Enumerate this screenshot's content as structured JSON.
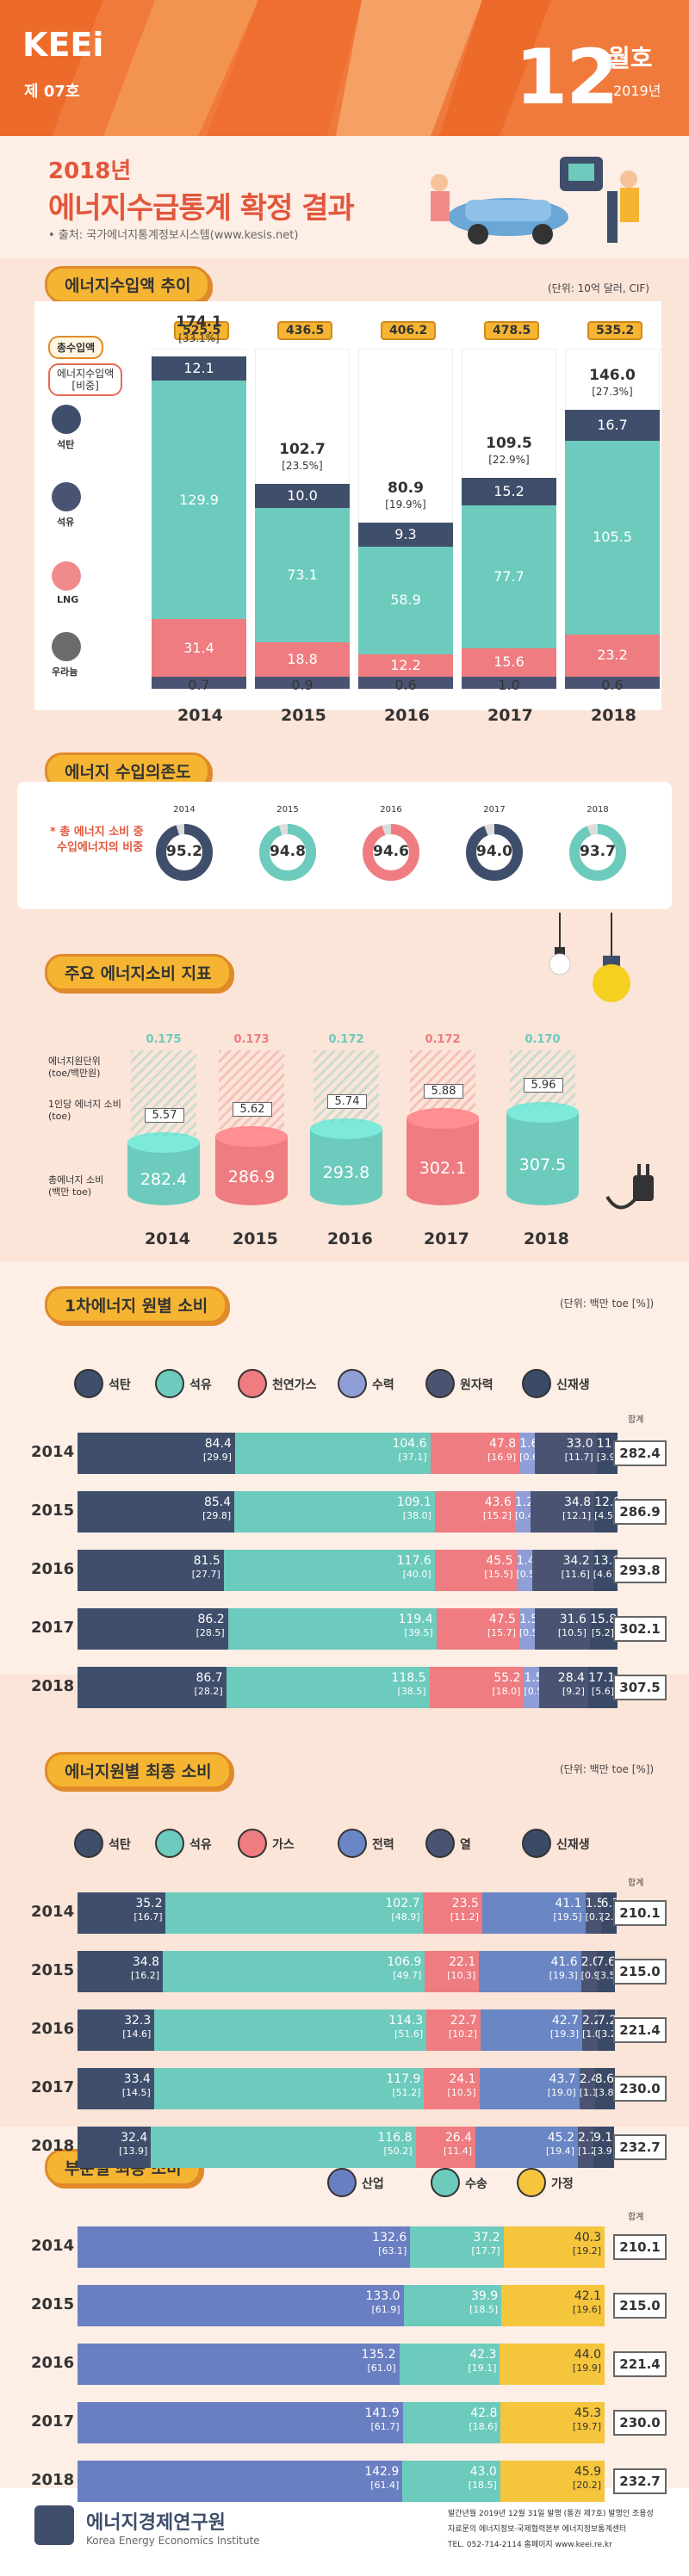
{
  "header": {
    "logo": "KEEi",
    "issue": "제 07호",
    "month_num": "12",
    "month_label": "월호",
    "year": "2019년"
  },
  "title": {
    "sub": "2018년",
    "main": "에너지수급통계 확정 결과",
    "source": "• 출처: 국가에너지통계정보시스템(www.kesis.net)"
  },
  "colors": {
    "coal": "#3f4e6b",
    "oil": "#6ccbbd",
    "lng": "#ee7c80",
    "nuclear": "#4a5472",
    "hydro": "#8f9ed6",
    "accent": "#f07a3c"
  },
  "sections": {
    "import_trend": "에너지수입액 추이",
    "dependency": "에너지 수입의존도",
    "indicators": "주요 에너지소비 지표",
    "primary": "1차에너지 원별 소비",
    "final": "에너지원별 최종 소비",
    "sector": "부문별 최종 소비"
  },
  "chart_data": [
    {
      "type": "bar",
      "title": "에너지수입액 추이",
      "unit": "(단위: 10억 달러, CIF)",
      "categories": [
        "2014",
        "2015",
        "2016",
        "2017",
        "2018"
      ],
      "series_labels": {
        "total": "총수입액",
        "share": "에너지수입액\n[비중]",
        "coal": "석탄",
        "oil": "석유",
        "lng": "LNG",
        "uranium": "우라늄"
      },
      "total": [
        525.5,
        436.5,
        406.2,
        478.5,
        535.2
      ],
      "energy": [
        174.1,
        102.7,
        80.9,
        109.5,
        146.0
      ],
      "energy_share": [
        "[33.1%]",
        "[23.5%]",
        "[19.9%]",
        "[22.9%]",
        "[27.3%]"
      ],
      "series": [
        {
          "name": "석탄",
          "values": [
            12.1,
            10.0,
            9.3,
            15.2,
            16.7
          ]
        },
        {
          "name": "석유",
          "values": [
            129.9,
            73.1,
            58.9,
            77.7,
            105.5
          ]
        },
        {
          "name": "LNG",
          "values": [
            31.4,
            18.8,
            12.2,
            15.6,
            23.2
          ]
        },
        {
          "name": "우라늄",
          "values": [
            0.7,
            0.9,
            0.6,
            1.0,
            0.6
          ]
        }
      ]
    },
    {
      "type": "pie",
      "title": "에너지 수입의존도",
      "note_line1": "* 총 에너지 소비 중",
      "note_line2": "수입에너지의 비중",
      "categories": [
        "2014",
        "2015",
        "2016",
        "2017",
        "2018"
      ],
      "values": [
        95.2,
        94.8,
        94.6,
        94.0,
        93.7
      ]
    },
    {
      "type": "bar",
      "title": "주요 에너지소비 지표",
      "categories": [
        "2014",
        "2015",
        "2016",
        "2017",
        "2018"
      ],
      "row_labels": {
        "intensity": "에너지원단위\n(toe/백만원)",
        "per_capita": "1인당 에너지 소비\n(toe)",
        "total": "총에너지 소비\n(백만 toe)"
      },
      "intensity": [
        0.175,
        0.173,
        0.172,
        0.172,
        0.17
      ],
      "per_capita": [
        5.57,
        5.62,
        5.74,
        5.88,
        5.96
      ],
      "total": [
        282.4,
        286.9,
        293.8,
        302.1,
        307.5
      ]
    },
    {
      "type": "bar",
      "title": "1차에너지 원별 소비",
      "unit": "(단위: 백만 toe [%])",
      "total_label": "합계",
      "legend": [
        "석탄",
        "석유",
        "천연가스",
        "수력",
        "원자력",
        "신재생"
      ],
      "categories": [
        "2014",
        "2015",
        "2016",
        "2017",
        "2018"
      ],
      "totals": [
        282.4,
        286.9,
        293.8,
        302.1,
        307.5
      ],
      "series": [
        {
          "name": "석탄",
          "values": [
            84.4,
            85.4,
            81.5,
            86.2,
            86.7
          ],
          "pct": [
            "[29.9]",
            "[29.8]",
            "[27.7]",
            "[28.5]",
            "[28.2]"
          ]
        },
        {
          "name": "석유",
          "values": [
            104.6,
            109.1,
            117.6,
            119.4,
            118.5
          ],
          "pct": [
            "[37.1]",
            "[38.0]",
            "[40.0]",
            "[39.5]",
            "[38.5]"
          ]
        },
        {
          "name": "천연가스",
          "values": [
            47.8,
            43.6,
            45.5,
            47.5,
            55.2
          ],
          "pct": [
            "[16.9]",
            "[15.2]",
            "[15.5]",
            "[15.7]",
            "[18.0]"
          ]
        },
        {
          "name": "수력",
          "values": [
            1.6,
            1.2,
            1.4,
            1.5,
            1.5
          ],
          "pct": [
            "[0.6]",
            "[0.4]",
            "[0.5]",
            "[0.5]",
            "[0.5]"
          ]
        },
        {
          "name": "원자력",
          "values": [
            33.0,
            34.8,
            34.2,
            31.6,
            28.4
          ],
          "pct": [
            "[11.7]",
            "[12.1]",
            "[11.6]",
            "[10.5]",
            "[9.2]"
          ]
        },
        {
          "name": "신재생",
          "values": [
            11.0,
            12.8,
            13.6,
            15.8,
            17.1
          ],
          "pct": [
            "[3.9]",
            "[4.5]",
            "[4.6]",
            "[5.2]",
            "[5.6]"
          ]
        }
      ]
    },
    {
      "type": "bar",
      "title": "에너지원별 최종 소비",
      "unit": "(단위: 백만 toe [%])",
      "total_label": "합계",
      "legend": [
        "석탄",
        "석유",
        "가스",
        "전력",
        "열",
        "신재생"
      ],
      "categories": [
        "2014",
        "2015",
        "2016",
        "2017",
        "2018"
      ],
      "totals": [
        210.1,
        215.0,
        221.4,
        230.0,
        232.7
      ],
      "series": [
        {
          "name": "석탄",
          "values": [
            35.2,
            34.8,
            32.3,
            33.4,
            32.4
          ],
          "pct": [
            "[16.7]",
            "[16.2]",
            "[14.6]",
            "[14.5]",
            "[13.9]"
          ]
        },
        {
          "name": "석유",
          "values": [
            102.7,
            106.9,
            114.3,
            117.9,
            116.8
          ],
          "pct": [
            "[48.9]",
            "[49.7]",
            "[51.6]",
            "[51.2]",
            "[50.2]"
          ]
        },
        {
          "name": "가스",
          "values": [
            23.5,
            22.1,
            22.7,
            24.1,
            26.4
          ],
          "pct": [
            "[11.2]",
            "[10.3]",
            "[10.2]",
            "[10.5]",
            "[11.4]"
          ]
        },
        {
          "name": "전력",
          "values": [
            41.1,
            41.6,
            42.7,
            43.7,
            45.2
          ],
          "pct": [
            "[19.5]",
            "[19.3]",
            "[19.3]",
            "[19.0]",
            "[19.4]"
          ]
        },
        {
          "name": "열",
          "values": [
            1.5,
            2.0,
            2.2,
            2.4,
            2.7
          ],
          "pct": [
            "[0.7]",
            "[0.9]",
            "[1.0]",
            "[1.1]",
            "[1.2]"
          ]
        },
        {
          "name": "신재생",
          "values": [
            6.2,
            7.6,
            7.2,
            8.6,
            9.1
          ],
          "pct": [
            "[2.9]",
            "[3.5]",
            "[3.2]",
            "[3.8]",
            "[3.9]"
          ]
        }
      ]
    },
    {
      "type": "bar",
      "title": "부문별 최종 소비",
      "total_label": "합계",
      "legend": [
        "산업",
        "수송",
        "가정"
      ],
      "categories": [
        "2014",
        "2015",
        "2016",
        "2017",
        "2018"
      ],
      "totals": [
        210.1,
        215.0,
        221.4,
        230.0,
        232.7
      ],
      "series": [
        {
          "name": "산업",
          "values": [
            132.6,
            133.0,
            135.2,
            141.9,
            142.9
          ],
          "pct": [
            "[63.1]",
            "[61.9]",
            "[61.0]",
            "[61.7]",
            "[61.4]"
          ]
        },
        {
          "name": "수송",
          "values": [
            37.2,
            39.9,
            42.3,
            42.8,
            43.0
          ],
          "pct": [
            "[17.7]",
            "[18.5]",
            "[19.1]",
            "[18.6]",
            "[18.5]"
          ]
        },
        {
          "name": "가정",
          "values": [
            40.3,
            42.1,
            44.0,
            45.3,
            45.9
          ],
          "pct": [
            "[19.2]",
            "[19.6]",
            "[19.9]",
            "[19.7]",
            "[20.2]"
          ]
        }
      ]
    }
  ],
  "footer": {
    "org": "에너지경제연구원",
    "org_en": "Korea Energy Economics Institute",
    "line1": "발간년월 2019년 12월 31일 발행 (통권 제7호)  발행인 조용성",
    "line2": "자료문의 에너지정보·국제협력본부 에너지정보통계센터",
    "line3": "TEL. 052-714-2114  홈페이지 www.keei.re.kr"
  }
}
